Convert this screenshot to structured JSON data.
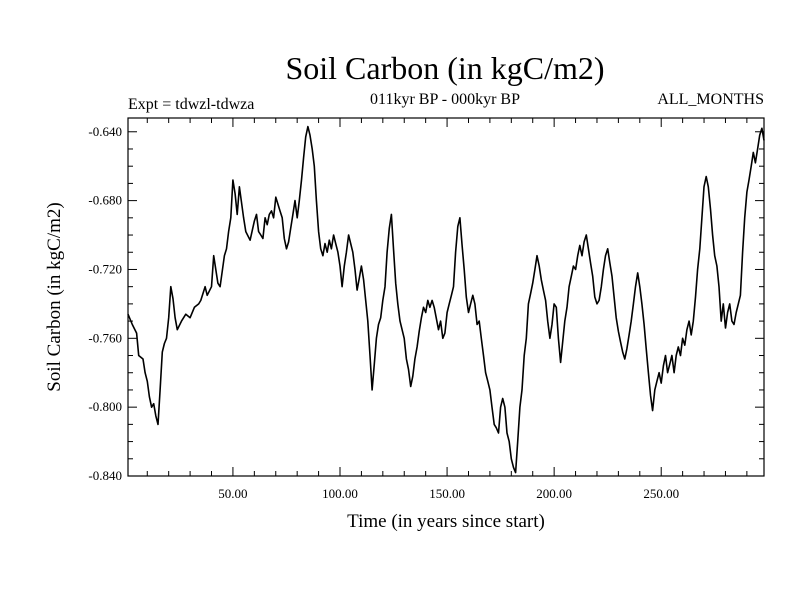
{
  "chart_data": {
    "type": "line",
    "title": "Soil Carbon (in kgC/m2)",
    "subtitle_left": "Expt = tdwzl-tdwza",
    "subtitle_center": "011kyr BP - 000kyr BP",
    "subtitle_right": "ALL_MONTHS",
    "xlabel": "Time (in years since start)",
    "ylabel": "Soil Carbon (in kgC/m2)",
    "xlim": [
      1,
      298
    ],
    "ylim": [
      -0.84,
      -0.632
    ],
    "x_ticks": [
      50,
      100,
      150,
      200,
      250
    ],
    "x_tick_labels": [
      "50.00",
      "100.00",
      "150.00",
      "200.00",
      "250.00"
    ],
    "y_ticks": [
      -0.64,
      -0.68,
      -0.72,
      -0.76,
      -0.8,
      -0.84
    ],
    "y_tick_labels": [
      "-0.640",
      "-0.680",
      "-0.720",
      "-0.760",
      "-0.800",
      "-0.840"
    ],
    "grid": false,
    "line_color": "#000000",
    "series": [
      {
        "points": [
          [
            1,
            -0.746
          ],
          [
            3,
            -0.752
          ],
          [
            5,
            -0.757
          ],
          [
            6,
            -0.77
          ],
          [
            8,
            -0.772
          ],
          [
            9,
            -0.78
          ],
          [
            10,
            -0.785
          ],
          [
            11,
            -0.794
          ],
          [
            12,
            -0.8
          ],
          [
            13,
            -0.798
          ],
          [
            14,
            -0.805
          ],
          [
            15,
            -0.81
          ],
          [
            16,
            -0.79
          ],
          [
            17,
            -0.768
          ],
          [
            18,
            -0.763
          ],
          [
            19,
            -0.76
          ],
          [
            20,
            -0.748
          ],
          [
            21,
            -0.73
          ],
          [
            22,
            -0.737
          ],
          [
            23,
            -0.748
          ],
          [
            24,
            -0.755
          ],
          [
            26,
            -0.75
          ],
          [
            28,
            -0.746
          ],
          [
            30,
            -0.748
          ],
          [
            32,
            -0.742
          ],
          [
            34,
            -0.74
          ],
          [
            35,
            -0.738
          ],
          [
            37,
            -0.73
          ],
          [
            38,
            -0.735
          ],
          [
            40,
            -0.73
          ],
          [
            41,
            -0.712
          ],
          [
            43,
            -0.728
          ],
          [
            44,
            -0.73
          ],
          [
            46,
            -0.712
          ],
          [
            47,
            -0.708
          ],
          [
            48,
            -0.698
          ],
          [
            49,
            -0.69
          ],
          [
            50,
            -0.668
          ],
          [
            51,
            -0.676
          ],
          [
            52,
            -0.688
          ],
          [
            53,
            -0.672
          ],
          [
            55,
            -0.69
          ],
          [
            56,
            -0.698
          ],
          [
            58,
            -0.703
          ],
          [
            60,
            -0.692
          ],
          [
            61,
            -0.688
          ],
          [
            62,
            -0.698
          ],
          [
            63,
            -0.7
          ],
          [
            64,
            -0.702
          ],
          [
            65,
            -0.69
          ],
          [
            66,
            -0.694
          ],
          [
            67,
            -0.688
          ],
          [
            68,
            -0.686
          ],
          [
            69,
            -0.69
          ],
          [
            70,
            -0.678
          ],
          [
            72,
            -0.686
          ],
          [
            73,
            -0.69
          ],
          [
            74,
            -0.702
          ],
          [
            75,
            -0.708
          ],
          [
            76,
            -0.704
          ],
          [
            77,
            -0.696
          ],
          [
            78,
            -0.688
          ],
          [
            79,
            -0.68
          ],
          [
            80,
            -0.69
          ],
          [
            81,
            -0.68
          ],
          [
            82,
            -0.668
          ],
          [
            83,
            -0.655
          ],
          [
            84,
            -0.643
          ],
          [
            85,
            -0.637
          ],
          [
            86,
            -0.642
          ],
          [
            87,
            -0.65
          ],
          [
            88,
            -0.66
          ],
          [
            89,
            -0.68
          ],
          [
            90,
            -0.698
          ],
          [
            91,
            -0.708
          ],
          [
            92,
            -0.712
          ],
          [
            93,
            -0.705
          ],
          [
            94,
            -0.71
          ],
          [
            95,
            -0.703
          ],
          [
            96,
            -0.708
          ],
          [
            97,
            -0.7
          ],
          [
            98,
            -0.705
          ],
          [
            99,
            -0.71
          ],
          [
            100,
            -0.718
          ],
          [
            101,
            -0.73
          ],
          [
            102,
            -0.718
          ],
          [
            103,
            -0.71
          ],
          [
            104,
            -0.7
          ],
          [
            106,
            -0.71
          ],
          [
            107,
            -0.72
          ],
          [
            108,
            -0.732
          ],
          [
            109,
            -0.725
          ],
          [
            110,
            -0.718
          ],
          [
            111,
            -0.726
          ],
          [
            112,
            -0.738
          ],
          [
            113,
            -0.75
          ],
          [
            114,
            -0.77
          ],
          [
            115,
            -0.79
          ],
          [
            116,
            -0.775
          ],
          [
            117,
            -0.76
          ],
          [
            118,
            -0.752
          ],
          [
            119,
            -0.748
          ],
          [
            120,
            -0.738
          ],
          [
            121,
            -0.73
          ],
          [
            122,
            -0.71
          ],
          [
            123,
            -0.696
          ],
          [
            124,
            -0.688
          ],
          [
            125,
            -0.708
          ],
          [
            126,
            -0.728
          ],
          [
            127,
            -0.74
          ],
          [
            128,
            -0.75
          ],
          [
            130,
            -0.76
          ],
          [
            131,
            -0.772
          ],
          [
            132,
            -0.778
          ],
          [
            133,
            -0.788
          ],
          [
            134,
            -0.782
          ],
          [
            135,
            -0.772
          ],
          [
            136,
            -0.765
          ],
          [
            137,
            -0.756
          ],
          [
            138,
            -0.748
          ],
          [
            139,
            -0.742
          ],
          [
            140,
            -0.745
          ],
          [
            141,
            -0.738
          ],
          [
            142,
            -0.742
          ],
          [
            143,
            -0.738
          ],
          [
            144,
            -0.742
          ],
          [
            146,
            -0.755
          ],
          [
            147,
            -0.75
          ],
          [
            148,
            -0.76
          ],
          [
            149,
            -0.757
          ],
          [
            150,
            -0.745
          ],
          [
            151,
            -0.74
          ],
          [
            152,
            -0.735
          ],
          [
            153,
            -0.73
          ],
          [
            154,
            -0.71
          ],
          [
            155,
            -0.695
          ],
          [
            156,
            -0.69
          ],
          [
            157,
            -0.706
          ],
          [
            158,
            -0.72
          ],
          [
            159,
            -0.736
          ],
          [
            160,
            -0.745
          ],
          [
            161,
            -0.74
          ],
          [
            162,
            -0.735
          ],
          [
            163,
            -0.74
          ],
          [
            164,
            -0.752
          ],
          [
            165,
            -0.75
          ],
          [
            166,
            -0.76
          ],
          [
            167,
            -0.77
          ],
          [
            168,
            -0.78
          ],
          [
            169,
            -0.785
          ],
          [
            170,
            -0.79
          ],
          [
            171,
            -0.8
          ],
          [
            172,
            -0.81
          ],
          [
            173,
            -0.812
          ],
          [
            174,
            -0.815
          ],
          [
            175,
            -0.8
          ],
          [
            176,
            -0.795
          ],
          [
            177,
            -0.8
          ],
          [
            178,
            -0.815
          ],
          [
            179,
            -0.82
          ],
          [
            180,
            -0.83
          ],
          [
            181,
            -0.835
          ],
          [
            182,
            -0.838
          ],
          [
            183,
            -0.82
          ],
          [
            184,
            -0.8
          ],
          [
            185,
            -0.79
          ],
          [
            186,
            -0.77
          ],
          [
            187,
            -0.76
          ],
          [
            188,
            -0.74
          ],
          [
            189,
            -0.734
          ],
          [
            190,
            -0.728
          ],
          [
            191,
            -0.72
          ],
          [
            192,
            -0.712
          ],
          [
            193,
            -0.718
          ],
          [
            194,
            -0.726
          ],
          [
            195,
            -0.732
          ],
          [
            196,
            -0.738
          ],
          [
            197,
            -0.75
          ],
          [
            198,
            -0.76
          ],
          [
            199,
            -0.752
          ],
          [
            200,
            -0.74
          ],
          [
            201,
            -0.742
          ],
          [
            202,
            -0.76
          ],
          [
            203,
            -0.774
          ],
          [
            204,
            -0.762
          ],
          [
            205,
            -0.75
          ],
          [
            206,
            -0.742
          ],
          [
            207,
            -0.73
          ],
          [
            208,
            -0.724
          ],
          [
            209,
            -0.718
          ],
          [
            210,
            -0.72
          ],
          [
            211,
            -0.712
          ],
          [
            212,
            -0.706
          ],
          [
            213,
            -0.712
          ],
          [
            214,
            -0.704
          ],
          [
            215,
            -0.7
          ],
          [
            216,
            -0.708
          ],
          [
            217,
            -0.716
          ],
          [
            218,
            -0.724
          ],
          [
            219,
            -0.736
          ],
          [
            220,
            -0.74
          ],
          [
            221,
            -0.738
          ],
          [
            222,
            -0.73
          ],
          [
            223,
            -0.72
          ],
          [
            224,
            -0.712
          ],
          [
            225,
            -0.708
          ],
          [
            226,
            -0.716
          ],
          [
            227,
            -0.724
          ],
          [
            228,
            -0.736
          ],
          [
            229,
            -0.748
          ],
          [
            230,
            -0.756
          ],
          [
            231,
            -0.762
          ],
          [
            232,
            -0.768
          ],
          [
            233,
            -0.772
          ],
          [
            234,
            -0.766
          ],
          [
            235,
            -0.758
          ],
          [
            236,
            -0.75
          ],
          [
            237,
            -0.74
          ],
          [
            238,
            -0.73
          ],
          [
            239,
            -0.722
          ],
          [
            240,
            -0.73
          ],
          [
            241,
            -0.74
          ],
          [
            242,
            -0.752
          ],
          [
            243,
            -0.766
          ],
          [
            244,
            -0.78
          ],
          [
            245,
            -0.793
          ],
          [
            246,
            -0.802
          ],
          [
            247,
            -0.79
          ],
          [
            248,
            -0.785
          ],
          [
            249,
            -0.78
          ],
          [
            250,
            -0.786
          ],
          [
            251,
            -0.776
          ],
          [
            252,
            -0.77
          ],
          [
            253,
            -0.78
          ],
          [
            254,
            -0.775
          ],
          [
            255,
            -0.77
          ],
          [
            256,
            -0.78
          ],
          [
            257,
            -0.77
          ],
          [
            258,
            -0.765
          ],
          [
            259,
            -0.77
          ],
          [
            260,
            -0.76
          ],
          [
            261,
            -0.764
          ],
          [
            262,
            -0.755
          ],
          [
            263,
            -0.75
          ],
          [
            264,
            -0.758
          ],
          [
            265,
            -0.75
          ],
          [
            266,
            -0.736
          ],
          [
            267,
            -0.72
          ],
          [
            268,
            -0.708
          ],
          [
            269,
            -0.69
          ],
          [
            270,
            -0.672
          ],
          [
            271,
            -0.666
          ],
          [
            272,
            -0.672
          ],
          [
            273,
            -0.685
          ],
          [
            274,
            -0.7
          ],
          [
            275,
            -0.712
          ],
          [
            276,
            -0.718
          ],
          [
            277,
            -0.73
          ],
          [
            278,
            -0.75
          ],
          [
            279,
            -0.74
          ],
          [
            280,
            -0.754
          ],
          [
            281,
            -0.745
          ],
          [
            282,
            -0.74
          ],
          [
            283,
            -0.75
          ],
          [
            284,
            -0.752
          ],
          [
            285,
            -0.745
          ],
          [
            286,
            -0.74
          ],
          [
            287,
            -0.735
          ],
          [
            288,
            -0.71
          ],
          [
            289,
            -0.69
          ],
          [
            290,
            -0.675
          ],
          [
            291,
            -0.668
          ],
          [
            292,
            -0.66
          ],
          [
            293,
            -0.652
          ],
          [
            294,
            -0.658
          ],
          [
            295,
            -0.65
          ],
          [
            296,
            -0.642
          ],
          [
            297,
            -0.638
          ],
          [
            298,
            -0.645
          ]
        ]
      }
    ]
  }
}
